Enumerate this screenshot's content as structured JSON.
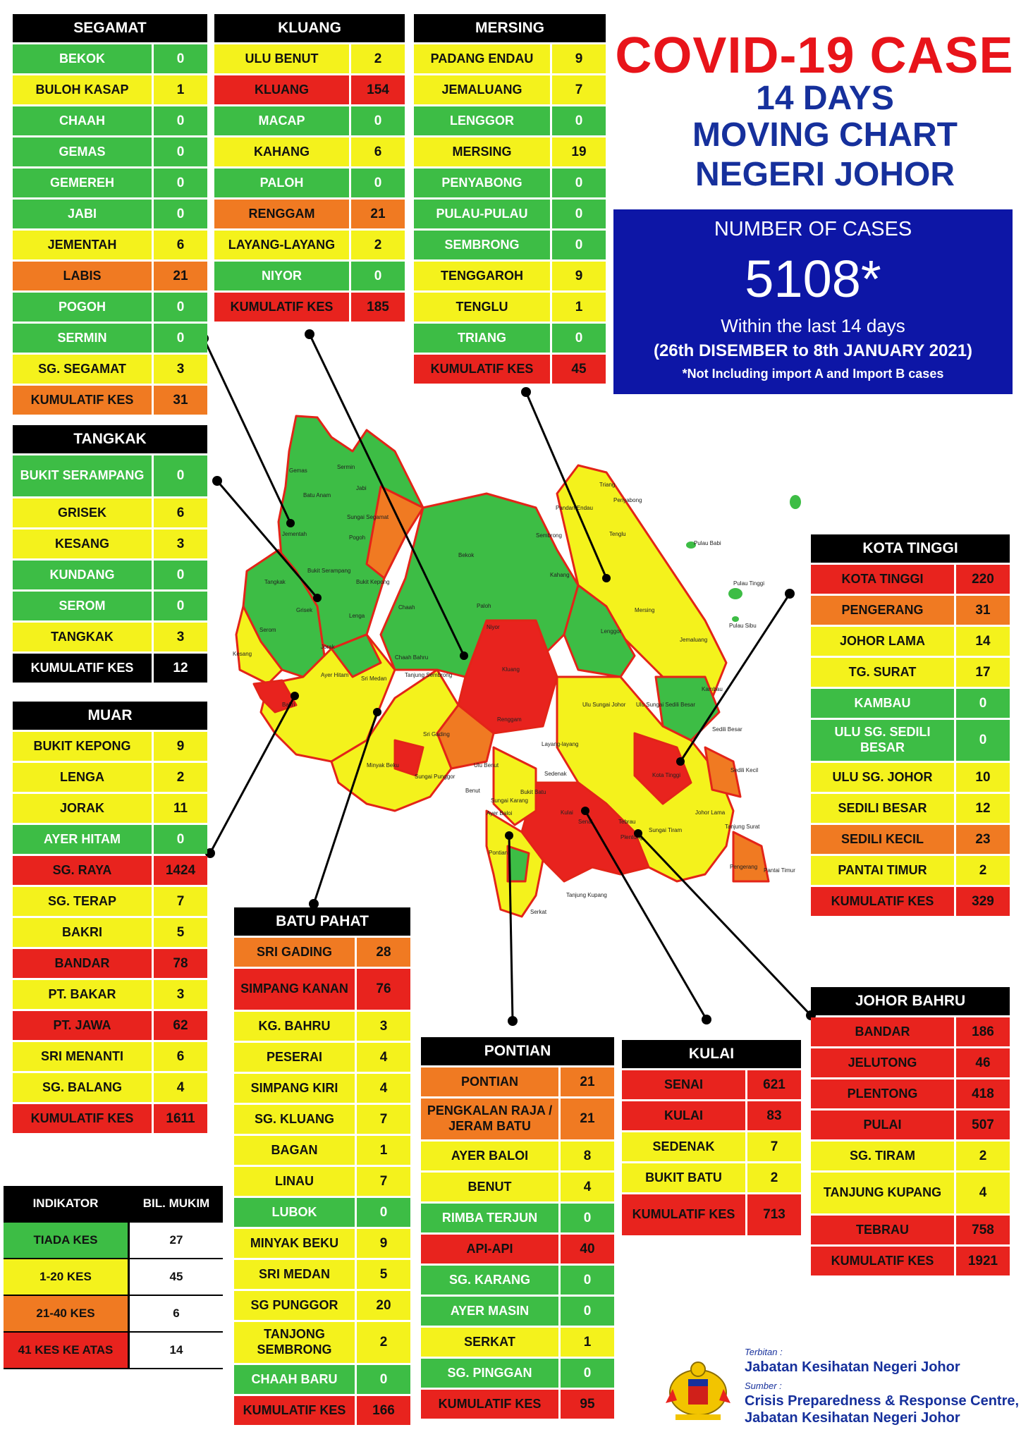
{
  "title": {
    "line1": "COVID-19 CASE",
    "line2": "14 DAYS",
    "line3": "MOVING CHART",
    "line4": "NEGERI JOHOR"
  },
  "cases_box": {
    "label": "NUMBER OF CASES",
    "number": "5108*",
    "within": "Within the last 14 days",
    "range": "(26th DISEMBER to 8th JANUARY 2021)",
    "note": "*Not Including import A and Import B cases"
  },
  "colors": {
    "green": "#3dbd45",
    "yellow": "#f4f21c",
    "orange": "#f07a22",
    "red": "#e8231e",
    "header": "#000000",
    "cases_box": "#0d16a6",
    "title_red": "#e8141a",
    "title_blue": "#16309c"
  },
  "districts": {
    "segamat": {
      "name": "SEGAMAT",
      "rows": [
        {
          "name": "BEKOK",
          "value": "0",
          "color": "green"
        },
        {
          "name": "BULOH KASAP",
          "value": "1",
          "color": "yellow"
        },
        {
          "name": "CHAAH",
          "value": "0",
          "color": "green"
        },
        {
          "name": "GEMAS",
          "value": "0",
          "color": "green"
        },
        {
          "name": "GEMEREH",
          "value": "0",
          "color": "green"
        },
        {
          "name": "JABI",
          "value": "0",
          "color": "green"
        },
        {
          "name": "JEMENTAH",
          "value": "6",
          "color": "yellow"
        },
        {
          "name": "LABIS",
          "value": "21",
          "color": "orange"
        },
        {
          "name": "POGOH",
          "value": "0",
          "color": "green"
        },
        {
          "name": "SERMIN",
          "value": "0",
          "color": "green"
        },
        {
          "name": "SG. SEGAMAT",
          "value": "3",
          "color": "yellow"
        },
        {
          "name": "KUMULATIF KES",
          "value": "31",
          "color": "orange"
        }
      ]
    },
    "kluang": {
      "name": "KLUANG",
      "rows": [
        {
          "name": "ULU BENUT",
          "value": "2",
          "color": "yellow"
        },
        {
          "name": "KLUANG",
          "value": "154",
          "color": "red"
        },
        {
          "name": "MACAP",
          "value": "0",
          "color": "green"
        },
        {
          "name": "KAHANG",
          "value": "6",
          "color": "yellow"
        },
        {
          "name": "PALOH",
          "value": "0",
          "color": "green"
        },
        {
          "name": "RENGGAM",
          "value": "21",
          "color": "orange"
        },
        {
          "name": "LAYANG-LAYANG",
          "value": "2",
          "color": "yellow"
        },
        {
          "name": "NIYOR",
          "value": "0",
          "color": "green"
        },
        {
          "name": "KUMULATIF KES",
          "value": "185",
          "color": "red"
        }
      ]
    },
    "mersing": {
      "name": "MERSING",
      "rows": [
        {
          "name": "PADANG ENDAU",
          "value": "9",
          "color": "yellow"
        },
        {
          "name": "JEMALUANG",
          "value": "7",
          "color": "yellow"
        },
        {
          "name": "LENGGOR",
          "value": "0",
          "color": "green"
        },
        {
          "name": "MERSING",
          "value": "19",
          "color": "yellow"
        },
        {
          "name": "PENYABONG",
          "value": "0",
          "color": "green"
        },
        {
          "name": "PULAU-PULAU",
          "value": "0",
          "color": "green"
        },
        {
          "name": "SEMBRONG",
          "value": "0",
          "color": "green"
        },
        {
          "name": "TENGGAROH",
          "value": "9",
          "color": "yellow"
        },
        {
          "name": "TENGLU",
          "value": "1",
          "color": "yellow"
        },
        {
          "name": "TRIANG",
          "value": "0",
          "color": "green"
        },
        {
          "name": "KUMULATIF KES",
          "value": "45",
          "color": "red"
        }
      ]
    },
    "tangkak": {
      "name": "TANGKAK",
      "rows": [
        {
          "name": "BUKIT SERAMPANG",
          "value": "0",
          "color": "green",
          "tall": true
        },
        {
          "name": "GRISEK",
          "value": "6",
          "color": "yellow"
        },
        {
          "name": "KESANG",
          "value": "3",
          "color": "yellow"
        },
        {
          "name": "KUNDANG",
          "value": "0",
          "color": "green"
        },
        {
          "name": "SEROM",
          "value": "0",
          "color": "green"
        },
        {
          "name": "TANGKAK",
          "value": "3",
          "color": "yellow"
        },
        {
          "name": "KUMULATIF KES",
          "value": "12",
          "color": "black"
        }
      ]
    },
    "muar": {
      "name": "MUAR",
      "rows": [
        {
          "name": "BUKIT KEPONG",
          "value": "9",
          "color": "yellow"
        },
        {
          "name": "LENGA",
          "value": "2",
          "color": "yellow"
        },
        {
          "name": "JORAK",
          "value": "11",
          "color": "yellow"
        },
        {
          "name": "AYER HITAM",
          "value": "0",
          "color": "green"
        },
        {
          "name": "SG. RAYA",
          "value": "1424",
          "color": "red"
        },
        {
          "name": "SG. TERAP",
          "value": "7",
          "color": "yellow"
        },
        {
          "name": "BAKRI",
          "value": "5",
          "color": "yellow"
        },
        {
          "name": "BANDAR",
          "value": "78",
          "color": "red"
        },
        {
          "name": "PT. BAKAR",
          "value": "3",
          "color": "yellow"
        },
        {
          "name": "PT. JAWA",
          "value": "62",
          "color": "red"
        },
        {
          "name": "SRI MENANTI",
          "value": "6",
          "color": "yellow"
        },
        {
          "name": "SG. BALANG",
          "value": "4",
          "color": "yellow"
        },
        {
          "name": "KUMULATIF KES",
          "value": "1611",
          "color": "red"
        }
      ]
    },
    "batu_pahat": {
      "name": "BATU PAHAT",
      "rows": [
        {
          "name": "SRI GADING",
          "value": "28",
          "color": "orange"
        },
        {
          "name": "SIMPANG KANAN",
          "value": "76",
          "color": "red",
          "tall": true
        },
        {
          "name": "KG. BAHRU",
          "value": "3",
          "color": "yellow"
        },
        {
          "name": "PESERAI",
          "value": "4",
          "color": "yellow"
        },
        {
          "name": "SIMPANG KIRI",
          "value": "4",
          "color": "yellow"
        },
        {
          "name": "SG. KLUANG",
          "value": "7",
          "color": "yellow"
        },
        {
          "name": "BAGAN",
          "value": "1",
          "color": "yellow"
        },
        {
          "name": "LINAU",
          "value": "7",
          "color": "yellow"
        },
        {
          "name": "LUBOK",
          "value": "0",
          "color": "green"
        },
        {
          "name": "MINYAK BEKU",
          "value": "9",
          "color": "yellow"
        },
        {
          "name": "SRI MEDAN",
          "value": "5",
          "color": "yellow"
        },
        {
          "name": "SG PUNGGOR",
          "value": "20",
          "color": "yellow"
        },
        {
          "name": "TANJONG SEMBRONG",
          "value": "2",
          "color": "yellow",
          "tall": true
        },
        {
          "name": "CHAAH BARU",
          "value": "0",
          "color": "green"
        },
        {
          "name": "KUMULATIF KES",
          "value": "166",
          "color": "red"
        }
      ]
    },
    "pontian": {
      "name": "PONTIAN",
      "rows": [
        {
          "name": "PONTIAN",
          "value": "21",
          "color": "orange"
        },
        {
          "name": "PENGKALAN RAJA / JERAM BATU",
          "value": "21",
          "color": "orange",
          "tall": true
        },
        {
          "name": "AYER BALOI",
          "value": "8",
          "color": "yellow"
        },
        {
          "name": "BENUT",
          "value": "4",
          "color": "yellow"
        },
        {
          "name": "RIMBA TERJUN",
          "value": "0",
          "color": "green"
        },
        {
          "name": "API-API",
          "value": "40",
          "color": "red"
        },
        {
          "name": "SG. KARANG",
          "value": "0",
          "color": "green"
        },
        {
          "name": "AYER MASIN",
          "value": "0",
          "color": "green"
        },
        {
          "name": "SERKAT",
          "value": "1",
          "color": "yellow"
        },
        {
          "name": "SG. PINGGAN",
          "value": "0",
          "color": "green"
        },
        {
          "name": "KUMULATIF KES",
          "value": "95",
          "color": "red"
        }
      ]
    },
    "kulai": {
      "name": "KULAI",
      "rows": [
        {
          "name": "SENAI",
          "value": "621",
          "color": "red"
        },
        {
          "name": "KULAI",
          "value": "83",
          "color": "red"
        },
        {
          "name": "SEDENAK",
          "value": "7",
          "color": "yellow"
        },
        {
          "name": "BUKIT BATU",
          "value": "2",
          "color": "yellow"
        },
        {
          "name": "KUMULATIF KES",
          "value": "713",
          "color": "red",
          "tall": true
        }
      ]
    },
    "kota_tinggi": {
      "name": "KOTA TINGGI",
      "rows": [
        {
          "name": "KOTA TINGGI",
          "value": "220",
          "color": "red"
        },
        {
          "name": "PENGERANG",
          "value": "31",
          "color": "orange"
        },
        {
          "name": "JOHOR LAMA",
          "value": "14",
          "color": "yellow"
        },
        {
          "name": "TG. SURAT",
          "value": "17",
          "color": "yellow"
        },
        {
          "name": "KAMBAU",
          "value": "0",
          "color": "green"
        },
        {
          "name": "ULU SG. SEDILI BESAR",
          "value": "0",
          "color": "green",
          "tall": true
        },
        {
          "name": "ULU  SG. JOHOR",
          "value": "10",
          "color": "yellow"
        },
        {
          "name": "SEDILI BESAR",
          "value": "12",
          "color": "yellow"
        },
        {
          "name": "SEDILI KECIL",
          "value": "23",
          "color": "orange"
        },
        {
          "name": "PANTAI TIMUR",
          "value": "2",
          "color": "yellow"
        },
        {
          "name": "KUMULATIF KES",
          "value": "329",
          "color": "red"
        }
      ]
    },
    "johor_bahru": {
      "name": "JOHOR BAHRU",
      "rows": [
        {
          "name": "BANDAR",
          "value": "186",
          "color": "red"
        },
        {
          "name": "JELUTONG",
          "value": "46",
          "color": "red"
        },
        {
          "name": "PLENTONG",
          "value": "418",
          "color": "red"
        },
        {
          "name": "PULAI",
          "value": "507",
          "color": "red"
        },
        {
          "name": "SG. TIRAM",
          "value": "2",
          "color": "yellow"
        },
        {
          "name": "TANJUNG KUPANG",
          "value": "4",
          "color": "yellow",
          "tall": true
        },
        {
          "name": "TEBRAU",
          "value": "758",
          "color": "red"
        },
        {
          "name": "KUMULATIF KES",
          "value": "1921",
          "color": "red"
        }
      ]
    }
  },
  "legend": {
    "header": {
      "label": "INDIKATOR",
      "count": "BIL. MUKIM"
    },
    "rows": [
      {
        "label": "TIADA KES",
        "count": "27",
        "color": "green"
      },
      {
        "label": "1-20 KES",
        "count": "45",
        "color": "yellow"
      },
      {
        "label": "21-40 KES",
        "count": "6",
        "color": "orange"
      },
      {
        "label": "41 KES KE ATAS",
        "count": "14",
        "color": "red"
      }
    ]
  },
  "footer": {
    "terbitan_label": "Terbitan :",
    "terbitan": "Jabatan Kesihatan Negeri Johor",
    "sumber_label": "Sumber :",
    "sumber1": "Crisis Preparedness & Response Centre,",
    "sumber2": "Jabatan Kesihatan Negeri Johor"
  },
  "map_labels": [
    "Gemas",
    "Jabi",
    "Sermin",
    "Batu Anam",
    "Sungai Segamat",
    "Pogoh",
    "Jementah",
    "Bekok",
    "Sembrong",
    "Tenglu",
    "Pandan Endau",
    "Triang",
    "Penyabong",
    "Pulau Babi",
    "Pulau Tinggi",
    "Pulau Sibu",
    "Tangkak",
    "Grisek",
    "Bukit Serampang",
    "Bukit Kepong",
    "Lenga",
    "Chaah",
    "Paloh",
    "Niyor",
    "Kahang",
    "Mersing",
    "Lenggor",
    "Jemaluang",
    "Kambau",
    "Jorak",
    "Ayer Hitam",
    "Sri Medan",
    "Tanjung Sembrong",
    "Kluang",
    "Renggam",
    "Ulu Sungai Sedili Besar",
    "Sedili Besar",
    "Sedili Kecil",
    "Ulu Sungai Johor",
    "Kota Tinggi",
    "Layang-layang",
    "Sedenak",
    "Bukit Batu",
    "Kulai",
    "Senai",
    "Tebrau",
    "Plentong",
    "Sungai Tiram",
    "Johor Lama",
    "Tanjung Surat",
    "Pengerang",
    "Pantai Timur",
    "Pontian",
    "Serkat",
    "Tanjung Kupang",
    "Minyak Beku",
    "Sungai Punggor",
    "Sri Gading",
    "Ulu Benut",
    "Benut",
    "Sungai Karang",
    "Ayer Baloi",
    "Chaah Bahru",
    "Kesang",
    "Bakri",
    "Serom"
  ]
}
